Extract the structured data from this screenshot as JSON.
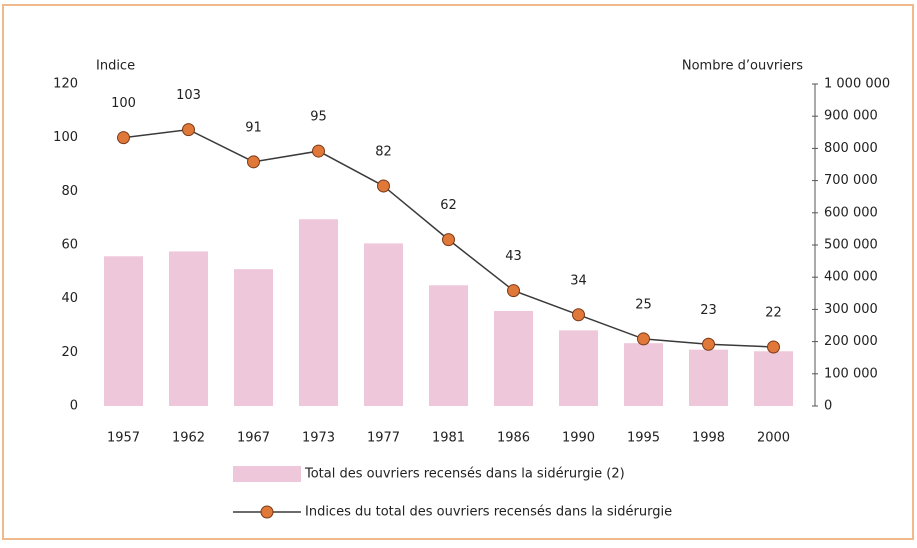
{
  "chart_data": {
    "type": "bar",
    "y_label": "Indice",
    "y2_label": "Nombre d’ouvriers",
    "categories": [
      "1957",
      "1962",
      "1967",
      "1973",
      "1977",
      "1981",
      "1986",
      "1990",
      "1995",
      "1998",
      "2000"
    ],
    "series": [
      {
        "name": "Total des ouvriers recensés dans la sidérurgie (2)",
        "type": "bar",
        "axis": "y2",
        "color": "#efc7da",
        "values": [
          465000,
          480000,
          425000,
          580000,
          505000,
          375000,
          295000,
          235000,
          195000,
          175000,
          170000
        ]
      },
      {
        "name": "Indices du total des ouvriers recensés dans la sidérurgie",
        "type": "line",
        "axis": "y",
        "color": "#3a3a3a",
        "marker_color": "#e0783a",
        "values": [
          100,
          103,
          91,
          95,
          82,
          62,
          43,
          34,
          25,
          23,
          22
        ]
      }
    ],
    "ylim": [
      0,
      120
    ],
    "yticks": [
      0,
      20,
      40,
      60,
      80,
      100,
      120
    ],
    "y2lim": [
      0,
      1000000
    ],
    "y2ticks": [
      0,
      {
        "value": 100000,
        "label": "100 000"
      },
      {
        "value": 200000,
        "label": "200 000"
      },
      {
        "value": 300000,
        "label": "300 000"
      },
      {
        "value": 400000,
        "label": "400 000"
      },
      {
        "value": 500000,
        "label": "500 000"
      },
      {
        "value": 600000,
        "label": "600 000"
      },
      {
        "value": 700000,
        "label": "700 000"
      },
      {
        "value": 800000,
        "label": "800 000"
      },
      {
        "value": 900000,
        "label": "900 000"
      },
      {
        "value": 1000000,
        "label": "1 000 000"
      }
    ],
    "grid": false
  }
}
